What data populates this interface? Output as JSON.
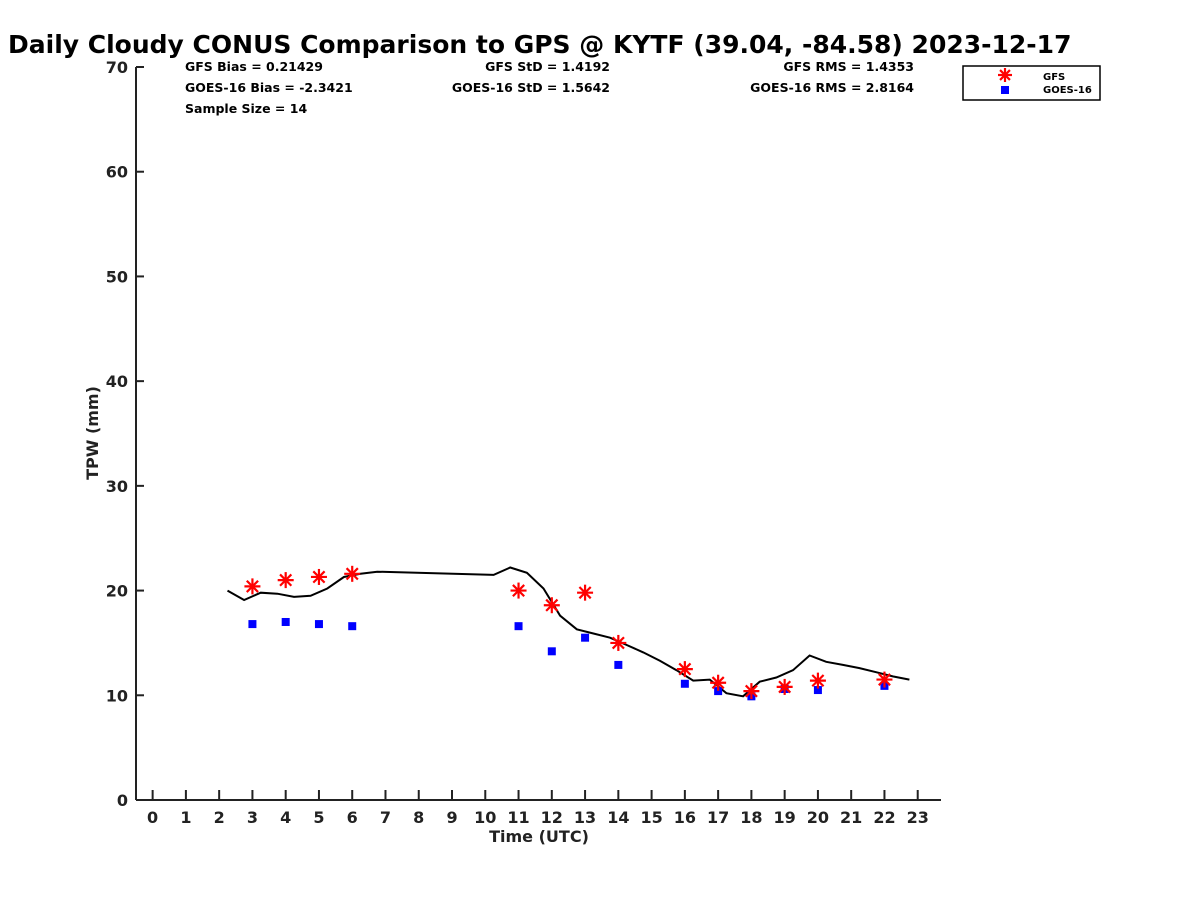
{
  "chart_data": {
    "type": "line",
    "title": "Daily Cloudy CONUS Comparison to GPS @ KYTF (39.04, -84.58) 2023-12-17",
    "xlabel": "Time (UTC)",
    "ylabel": "TPW (mm)",
    "xlim": [
      -0.5,
      23.7
    ],
    "ylim": [
      0,
      70
    ],
    "x_ticks": [
      "0",
      "1",
      "2",
      "3",
      "4",
      "5",
      "6",
      "7",
      "8",
      "9",
      "10",
      "11",
      "12",
      "13",
      "14",
      "15",
      "16",
      "17",
      "18",
      "19",
      "20",
      "21",
      "22",
      "23"
    ],
    "y_ticks": [
      "0",
      "10",
      "20",
      "30",
      "40",
      "50",
      "60",
      "70"
    ],
    "grid": false,
    "legend_position": "top-right",
    "stats": {
      "gfs_bias": "GFS Bias = 0.21429",
      "goes_bias": "GOES-16 Bias = -2.3421",
      "sample_size": "Sample Size = 14",
      "gfs_std": "GFS StD = 1.4192",
      "goes_std": "GOES-16 StD = 1.5642",
      "gfs_rms": "GFS RMS = 1.4353",
      "goes_rms": "GOES-16 RMS = 2.8164"
    },
    "legend": [
      {
        "name": "GFS",
        "color": "#ff0000",
        "marker": "asterisk"
      },
      {
        "name": "GOES-16",
        "color": "#0000ff",
        "marker": "square"
      }
    ],
    "gps_line": {
      "color": "#000000",
      "x": [
        2.25,
        2.75,
        3.25,
        3.75,
        4.25,
        4.75,
        5.25,
        5.75,
        6.25,
        6.75,
        10.25,
        10.75,
        11.25,
        11.75,
        12.25,
        12.75,
        13.25,
        13.75,
        14.25,
        14.75,
        15.25,
        15.75,
        16.25,
        16.75,
        17.25,
        17.75,
        18.25,
        18.75,
        19.25,
        19.75,
        20.25,
        20.75,
        21.25,
        21.75,
        22.25,
        22.75
      ],
      "y": [
        20.0,
        19.1,
        19.8,
        19.7,
        19.4,
        19.5,
        20.2,
        21.3,
        21.6,
        21.8,
        21.5,
        22.2,
        21.7,
        20.2,
        17.6,
        16.3,
        15.9,
        15.5,
        14.8,
        14.1,
        13.3,
        12.4,
        11.4,
        11.5,
        10.2,
        9.9,
        11.3,
        11.7,
        12.4,
        13.8,
        13.2,
        12.9,
        12.6,
        12.2,
        11.8,
        11.5
      ]
    },
    "series": [
      {
        "name": "GFS",
        "color": "#ff0000",
        "x": [
          3,
          4,
          5,
          6,
          11,
          12,
          13,
          14,
          16,
          17,
          18,
          19,
          20,
          22
        ],
        "values": [
          20.4,
          21.0,
          21.3,
          21.6,
          20.0,
          18.6,
          19.8,
          15.0,
          12.5,
          11.2,
          10.4,
          10.8,
          11.4,
          11.5
        ]
      },
      {
        "name": "GOES-16",
        "color": "#0000ff",
        "x": [
          3,
          4,
          5,
          6,
          11,
          12,
          13,
          14,
          16,
          17,
          18,
          19,
          20,
          22
        ],
        "values": [
          16.8,
          17.0,
          16.8,
          16.6,
          16.6,
          14.2,
          15.5,
          12.9,
          11.1,
          10.4,
          9.9,
          10.6,
          10.5,
          10.9
        ]
      }
    ]
  }
}
